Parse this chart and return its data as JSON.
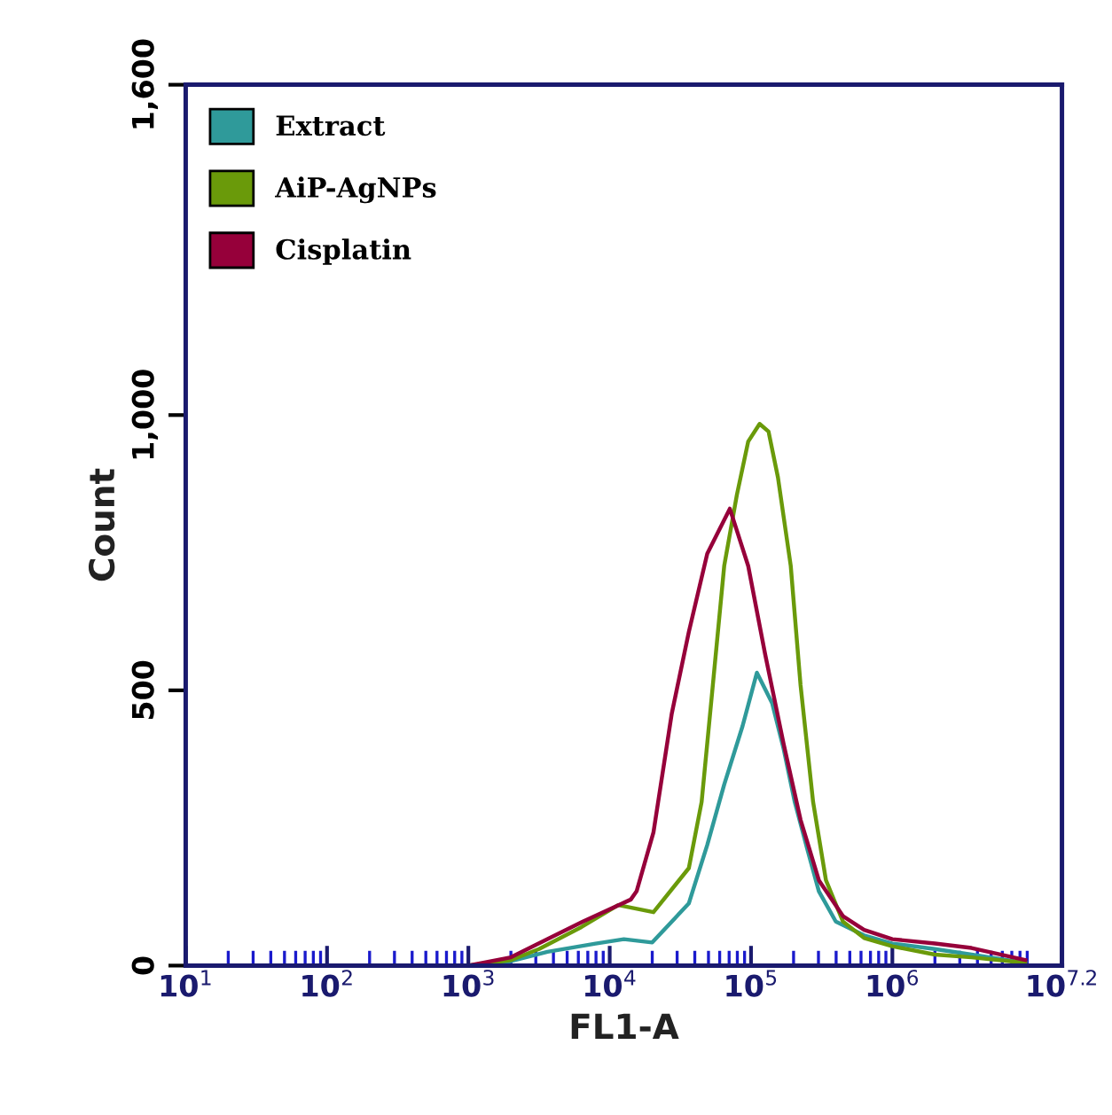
{
  "chart_data": {
    "type": "line",
    "xlabel": "FL1-A",
    "ylabel": "Count",
    "log": "x",
    "xlim": [
      10,
      15848932
    ],
    "xticks": [
      {
        "value": 10,
        "label": "10$^{1}$"
      },
      {
        "value": 100,
        "label": "10$^{2}$"
      },
      {
        "value": 1000,
        "label": "10$^{3}$"
      },
      {
        "value": 10000,
        "label": "10$^{4}$"
      },
      {
        "value": 100000,
        "label": "10$^{5}$"
      },
      {
        "value": 1000000,
        "label": "10$^{6}$"
      },
      {
        "value": 15848932,
        "label": "10$^{7.2}$"
      }
    ],
    "ylim": [
      0,
      1600
    ],
    "yticks": [
      0,
      500,
      {
        "value": 1000,
        "label": "1,000"
      },
      {
        "value": 1600,
        "label": "1,600"
      }
    ],
    "grid": false,
    "legend": "top left",
    "marker": "none",
    "line_style": "solid",
    "series": [
      {
        "name": "Extract",
        "color": "#2f9a9a",
        "x": [
          1000,
          2000,
          3630,
          7940,
          12600,
          20000,
          36300,
          49000,
          64600,
          87100,
          110000,
          141000,
          170000,
          204000,
          251000,
          302000,
          398000,
          631000,
          1000000,
          2000000,
          3630000,
          8710000
        ],
        "values": [
          0,
          8,
          25,
          40,
          48,
          42,
          113,
          219,
          329,
          435,
          532,
          477,
          394,
          297,
          210,
          135,
          80,
          55,
          40,
          30,
          20,
          5
        ]
      },
      {
        "name": "AiP-AgNPs",
        "color": "#6a9a0a",
        "x": [
          1000,
          2000,
          3160,
          6310,
          11500,
          20400,
          36300,
          44700,
          53700,
          64600,
          79400,
          95500,
          115000,
          133000,
          155000,
          191000,
          224000,
          275000,
          339000,
          447000,
          631000,
          1000000,
          2000000,
          3630000,
          8710000
        ],
        "values": [
          0,
          10,
          30,
          70,
          110,
          97,
          177,
          297,
          510,
          726,
          855,
          952,
          984,
          970,
          887,
          726,
          510,
          297,
          155,
          80,
          50,
          35,
          20,
          15,
          5
        ]
      },
      {
        "name": "Cisplatin",
        "color": "#96003a",
        "x": [
          1000,
          2000,
          3630,
          6460,
          14100,
          15500,
          20400,
          27500,
          36300,
          49000,
          70800,
          95500,
          126000,
          170000,
          224000,
          302000,
          447000,
          631000,
          1000000,
          2000000,
          3630000,
          8710000
        ],
        "values": [
          0,
          15,
          48,
          80,
          120,
          135,
          242,
          458,
          606,
          748,
          830,
          726,
          565,
          403,
          265,
          155,
          90,
          65,
          48,
          40,
          32,
          10
        ]
      }
    ]
  }
}
